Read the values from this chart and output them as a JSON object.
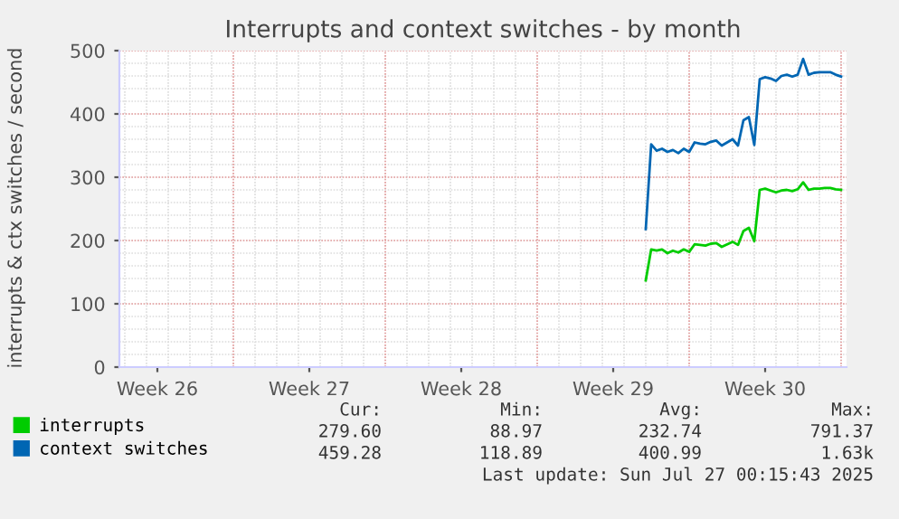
{
  "chart_data": {
    "type": "line",
    "title": "Interrupts and context switches - by month",
    "ylabel": "interrupts & ctx switches / second",
    "ylim": [
      0,
      500
    ],
    "yticks": [
      0,
      100,
      200,
      300,
      400,
      500
    ],
    "categories": [
      null,
      null,
      null,
      null,
      null,
      null,
      null,
      "Week 26",
      null,
      null,
      null,
      null,
      null,
      null,
      null,
      null,
      null,
      null,
      null,
      null,
      null,
      null,
      null,
      null,
      null,
      null,
      null,
      null,
      null,
      null,
      null,
      null,
      null,
      null,
      null,
      "Week 27",
      null,
      null,
      null,
      null,
      null,
      null,
      null,
      null,
      null,
      null,
      null,
      null,
      null,
      null,
      null,
      null,
      null,
      null,
      null,
      null,
      null,
      null,
      null,
      null,
      null,
      null,
      null,
      "Week 28",
      null,
      null,
      null,
      null,
      null,
      null,
      null,
      null,
      null,
      null,
      null,
      null,
      null,
      null,
      null,
      null,
      null,
      null,
      null,
      null,
      null,
      null,
      null,
      null,
      null,
      null,
      null,
      "Week 29",
      null,
      null,
      null,
      null,
      null,
      null,
      null,
      null,
      null,
      null,
      null,
      null,
      null,
      null,
      null,
      null,
      null,
      null,
      null,
      null,
      null,
      null,
      null,
      null,
      null,
      null,
      null,
      "Week 30",
      null,
      null,
      null,
      null,
      null,
      null,
      null,
      null,
      null,
      null,
      null,
      null,
      null,
      null
    ],
    "series": [
      {
        "name": "interrupts",
        "color": "#00cc00",
        "values": [
          null,
          null,
          null,
          null,
          null,
          null,
          null,
          null,
          null,
          null,
          null,
          null,
          null,
          null,
          null,
          null,
          null,
          null,
          null,
          null,
          null,
          null,
          null,
          null,
          null,
          null,
          null,
          null,
          null,
          null,
          null,
          null,
          null,
          null,
          null,
          null,
          null,
          null,
          null,
          null,
          null,
          null,
          null,
          null,
          null,
          null,
          null,
          null,
          null,
          null,
          null,
          null,
          null,
          null,
          null,
          null,
          null,
          null,
          null,
          null,
          null,
          null,
          null,
          null,
          null,
          null,
          null,
          null,
          null,
          null,
          null,
          null,
          null,
          null,
          null,
          null,
          null,
          null,
          null,
          null,
          null,
          null,
          null,
          null,
          null,
          null,
          null,
          null,
          null,
          null,
          null,
          null,
          null,
          null,
          null,
          null,
          null,
          137,
          186,
          184,
          186,
          180,
          184,
          181,
          186,
          182,
          194,
          193,
          192,
          195,
          196,
          190,
          194,
          198,
          193,
          215,
          220,
          199,
          280,
          282,
          279,
          276,
          279,
          280,
          278,
          281,
          292,
          280,
          282,
          282,
          283,
          283,
          281,
          280
        ]
      },
      {
        "name": "context switches",
        "color": "#0066b3",
        "values": [
          null,
          null,
          null,
          null,
          null,
          null,
          null,
          null,
          null,
          null,
          null,
          null,
          null,
          null,
          null,
          null,
          null,
          null,
          null,
          null,
          null,
          null,
          null,
          null,
          null,
          null,
          null,
          null,
          null,
          null,
          null,
          null,
          null,
          null,
          null,
          null,
          null,
          null,
          null,
          null,
          null,
          null,
          null,
          null,
          null,
          null,
          null,
          null,
          null,
          null,
          null,
          null,
          null,
          null,
          null,
          null,
          null,
          null,
          null,
          null,
          null,
          null,
          null,
          null,
          null,
          null,
          null,
          null,
          null,
          null,
          null,
          null,
          null,
          null,
          null,
          null,
          null,
          null,
          null,
          null,
          null,
          null,
          null,
          null,
          null,
          null,
          null,
          null,
          null,
          null,
          null,
          null,
          null,
          null,
          null,
          null,
          null,
          218,
          352,
          342,
          345,
          340,
          343,
          338,
          345,
          340,
          355,
          353,
          352,
          356,
          358,
          350,
          355,
          360,
          350,
          390,
          395,
          351,
          455,
          458,
          456,
          452,
          460,
          462,
          459,
          462,
          487,
          462,
          465,
          466,
          466,
          466,
          462,
          459
        ]
      }
    ],
    "grid": true,
    "legend": "bottom",
    "marker": "none",
    "line_style": "solid",
    "annotations": [
      "Cur:",
      "Min:",
      "Avg:",
      "Max:",
      "279.60",
      "88.97",
      "232.74",
      "791.37",
      "459.28",
      "118.89",
      "400.99",
      "1.63k",
      "Last update: Sun Jul 27 00:15:43 2025"
    ]
  }
}
